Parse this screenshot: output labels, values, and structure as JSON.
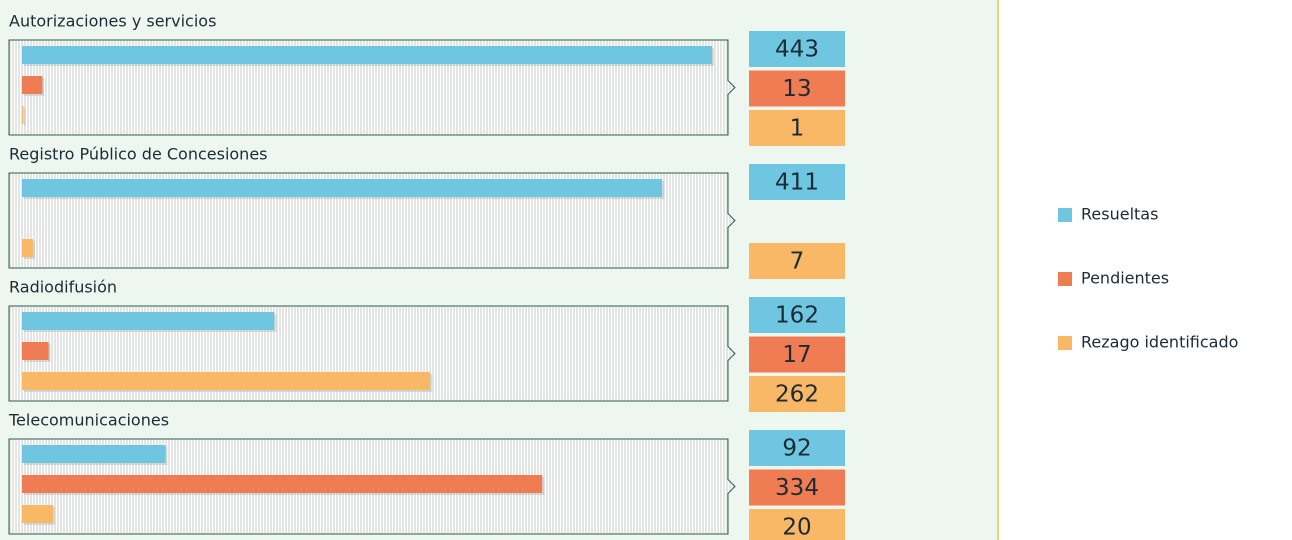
{
  "chart_data": {
    "type": "bar",
    "categories": [
      "Autorizaciones y servicios",
      "Registro Público de Concesiones",
      "Radiodifusión",
      "Telecomunicaciones"
    ],
    "series": [
      {
        "name": "Resueltas",
        "color": "#6ec6e0",
        "values": [
          443,
          411,
          162,
          92
        ]
      },
      {
        "name": "Pendientes",
        "color": "#f07c54",
        "values": [
          13,
          null,
          17,
          334
        ]
      },
      {
        "name": "Rezago identificado",
        "color": "#f9b865",
        "values": [
          1,
          7,
          262,
          20
        ]
      }
    ]
  }
}
